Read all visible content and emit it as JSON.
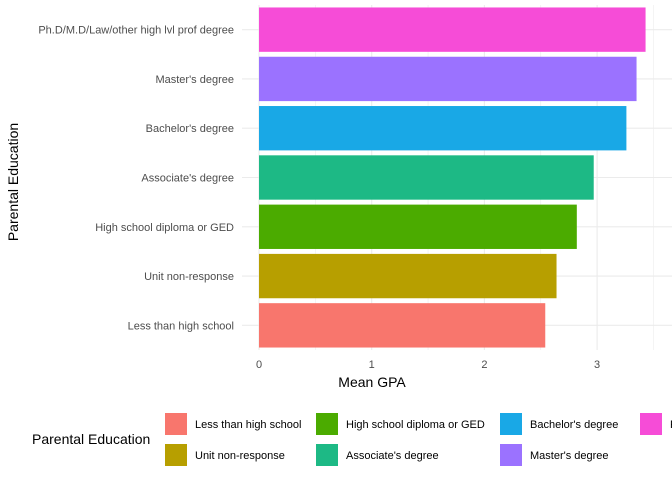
{
  "chart_data": {
    "type": "bar",
    "orientation": "horizontal",
    "xlabel": "Mean GPA",
    "ylabel": "Parental Education",
    "xlim": [
      0,
      3.5
    ],
    "x_ticks": [
      "0",
      "1",
      "2",
      "3"
    ],
    "grid": true,
    "categories": [
      "Less than high school",
      "Unit non-response",
      "High school diploma or GED",
      "Associate's degree",
      "Bachelor's degree",
      "Master's degree",
      "Ph.D/M.D/Law/other high lvl prof degree"
    ],
    "values": [
      2.54,
      2.64,
      2.82,
      2.97,
      3.26,
      3.35,
      3.43
    ],
    "colors": [
      "#F8766D",
      "#B79F00",
      "#4BAB00",
      "#1DB985",
      "#19A8E6",
      "#9B72FF",
      "#F64CD7"
    ],
    "legend": {
      "title": "Parental Education",
      "placement": "bottom",
      "entries": [
        {
          "label": "Less than high school",
          "color": "#F8766D"
        },
        {
          "label": "Unit non-response",
          "color": "#B79F00"
        },
        {
          "label": "High school diploma or GED",
          "color": "#4BAB00"
        },
        {
          "label": "Associate's degree",
          "color": "#1DB985"
        },
        {
          "label": "Bachelor's degree",
          "color": "#19A8E6"
        },
        {
          "label": "Master's degree",
          "color": "#9B72FF"
        },
        {
          "label": "Ph.D/M.D/Law/other high lvl prof degree",
          "color": "#F64CD7"
        }
      ]
    }
  }
}
